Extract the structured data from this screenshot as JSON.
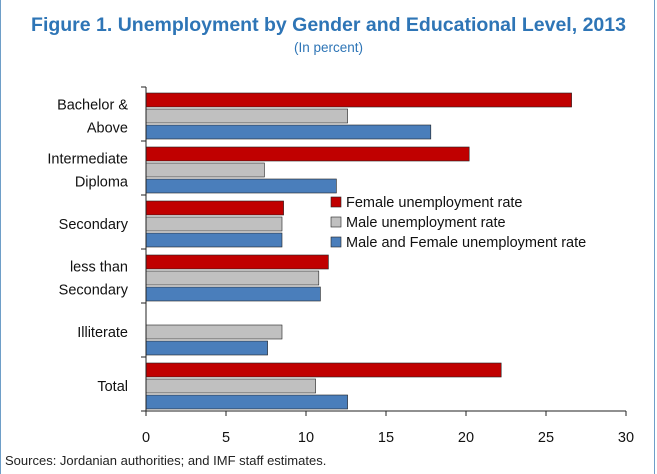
{
  "header": {
    "title": "Figure 1. Unemployment by Gender and Educational Level, 2013",
    "subtitle": "(In percent)"
  },
  "footer": {
    "source": "Sources: Jordanian authorities; and IMF staff estimates."
  },
  "colors": {
    "female": "#c00000",
    "male": "#c0c0c0",
    "both": "#4a7ebb",
    "title": "#2e75b6",
    "frame": "#6e9ec8"
  },
  "chart_data": {
    "type": "bar",
    "orientation": "horizontal",
    "title": "Figure 1. Unemployment by Gender and Educational Level, 2013",
    "subtitle": "(In percent)",
    "categories": [
      [
        "Bachelor &",
        "Above"
      ],
      [
        "Intermediate",
        "Diploma"
      ],
      [
        "Secondary"
      ],
      [
        "less than",
        "Secondary"
      ],
      [
        "Illiterate"
      ],
      [
        "Total"
      ]
    ],
    "series": [
      {
        "name": "Female unemployment rate",
        "color": "#c00000",
        "values": [
          26.6,
          20.2,
          8.6,
          11.4,
          null,
          22.2
        ]
      },
      {
        "name": "Male unemployment rate",
        "color": "#c0c0c0",
        "values": [
          12.6,
          7.4,
          8.5,
          10.8,
          8.5,
          10.6
        ]
      },
      {
        "name": "Male and Female unemployment rate",
        "color": "#4a7ebb",
        "values": [
          17.8,
          11.9,
          8.5,
          10.9,
          7.6,
          12.6
        ]
      }
    ],
    "xlim": [
      0,
      30
    ],
    "xticks": [
      0,
      5,
      10,
      15,
      20,
      25,
      30
    ],
    "grid": false,
    "legend_position": "right-middle"
  }
}
